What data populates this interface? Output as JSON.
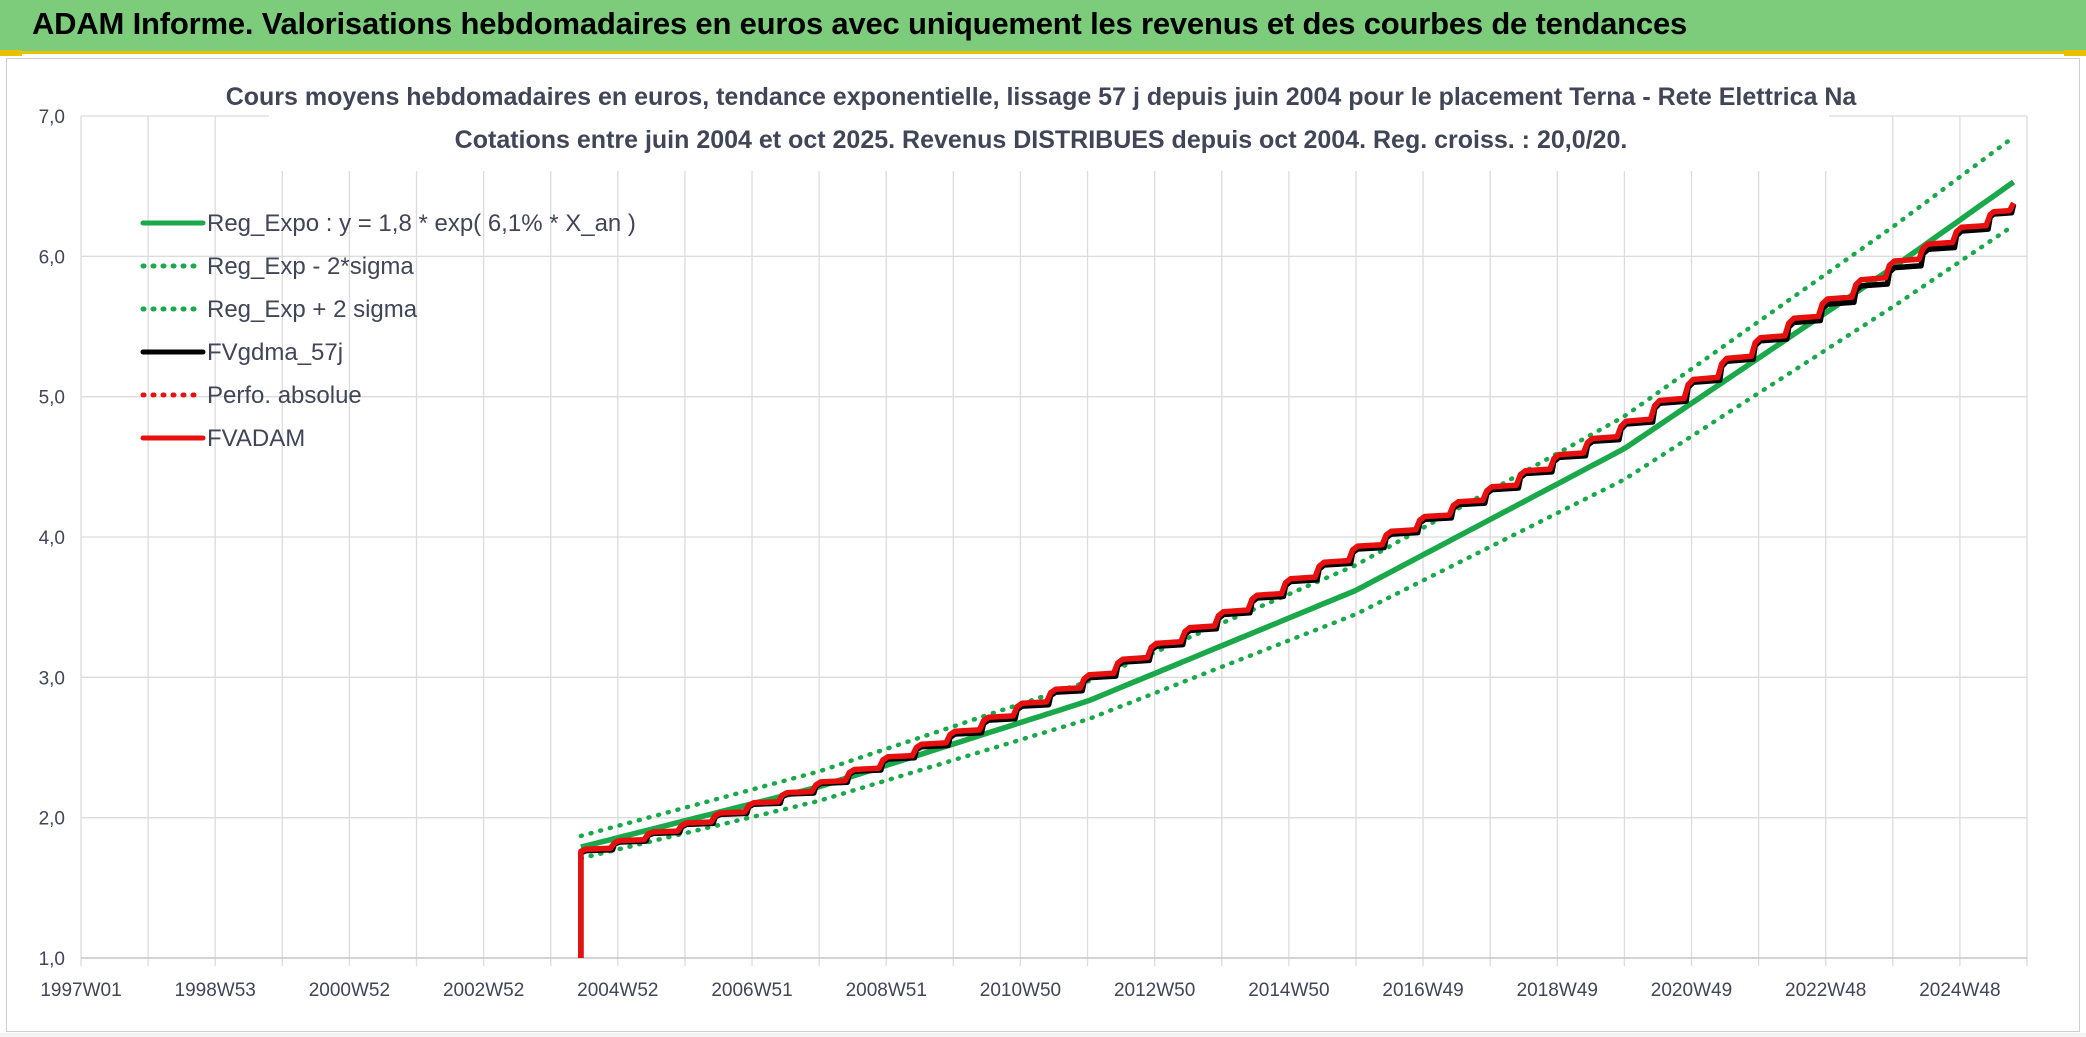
{
  "banner": {
    "title": "ADAM Informe. Valorisations hebdomadaires en euros avec uniquement les revenus et des courbes de tendances"
  },
  "colors": {
    "banner_bg": "#7ccc7c",
    "banner_accent": "#e6c200",
    "green": "#1aa84a",
    "black": "#000000",
    "red": "#e8100f"
  },
  "chart_data": {
    "type": "line",
    "title": "Cours moyens hebdomadaires en euros, tendance exponentielle, lissage 57 j depuis juin 2004 pour le placement Terna - Rete Elettrica Na",
    "subtitle": "Cotations entre juin 2004 et oct 2025. Revenus DISTRIBUES depuis oct 2004. Reg. croiss. : 20,0/20.",
    "x_tick_labels": [
      "1997W01",
      "1998W53",
      "2000W52",
      "2002W52",
      "2004W52",
      "2006W51",
      "2008W51",
      "2010W50",
      "2012W50",
      "2014W50",
      "2016W49",
      "2018W49",
      "2020W49",
      "2022W48",
      "2024W48"
    ],
    "x_range_years": [
      1997.0,
      2026.0
    ],
    "y_tick_labels": [
      "1,0",
      "2,0",
      "3,0",
      "4,0",
      "5,0",
      "6,0",
      "7,0"
    ],
    "ylim": [
      1.0,
      7.0
    ],
    "grid": true,
    "legend_position": "top-left",
    "legend": [
      {
        "label": "Reg_Expo : y = 1,8 * exp( 6,1% *  X_an )",
        "color": "#1aa84a",
        "style": "solid"
      },
      {
        "label": "Reg_Exp - 2*sigma",
        "color": "#1aa84a",
        "style": "dotted"
      },
      {
        "label": "Reg_Exp + 2 sigma",
        "color": "#1aa84a",
        "style": "dotted"
      },
      {
        "label": "FVgdma_57j",
        "color": "#000000",
        "style": "solid"
      },
      {
        "label": "Perfo. absolue",
        "color": "#e8100f",
        "style": "dotted"
      },
      {
        "label": "FVADAM",
        "color": "#e8100f",
        "style": "solid"
      }
    ],
    "series": [
      {
        "name": "Reg_Expo : y = 1,8 * exp( 6,1% *  X_an )",
        "x": [
          2004.45,
          2008.0,
          2012.0,
          2016.0,
          2020.0,
          2024.0,
          2025.8
        ],
        "y": [
          1.79,
          2.22,
          2.83,
          3.62,
          4.63,
          5.92,
          6.53
        ]
      },
      {
        "name": "Reg_Exp - 2*sigma",
        "x": [
          2004.45,
          2008.0,
          2012.0,
          2016.0,
          2020.0,
          2024.0,
          2025.8
        ],
        "y": [
          1.71,
          2.12,
          2.7,
          3.45,
          4.41,
          5.64,
          6.22
        ]
      },
      {
        "name": "Reg_Exp + 2 sigma",
        "x": [
          2004.45,
          2008.0,
          2012.0,
          2016.0,
          2020.0,
          2024.0,
          2025.8
        ],
        "y": [
          1.87,
          2.33,
          2.97,
          3.8,
          4.86,
          6.21,
          6.85
        ]
      },
      {
        "name": "FVgdma_57j",
        "x": [
          2004.45,
          2006.0,
          2008.0,
          2010.0,
          2012.0,
          2014.0,
          2016.0,
          2018.0,
          2020.0,
          2022.0,
          2024.0,
          2025.8
        ],
        "y": [
          1.75,
          1.94,
          2.23,
          2.58,
          2.98,
          3.43,
          3.9,
          4.32,
          4.78,
          5.38,
          5.9,
          6.37
        ]
      },
      {
        "name": "FVADAM",
        "x": [
          2004.45,
          2006.0,
          2008.0,
          2010.0,
          2012.0,
          2014.0,
          2016.0,
          2018.0,
          2020.0,
          2022.0,
          2024.0,
          2025.8
        ],
        "y": [
          1.76,
          1.95,
          2.24,
          2.6,
          3.0,
          3.45,
          3.92,
          4.34,
          4.8,
          5.4,
          5.95,
          6.38
        ]
      }
    ]
  }
}
